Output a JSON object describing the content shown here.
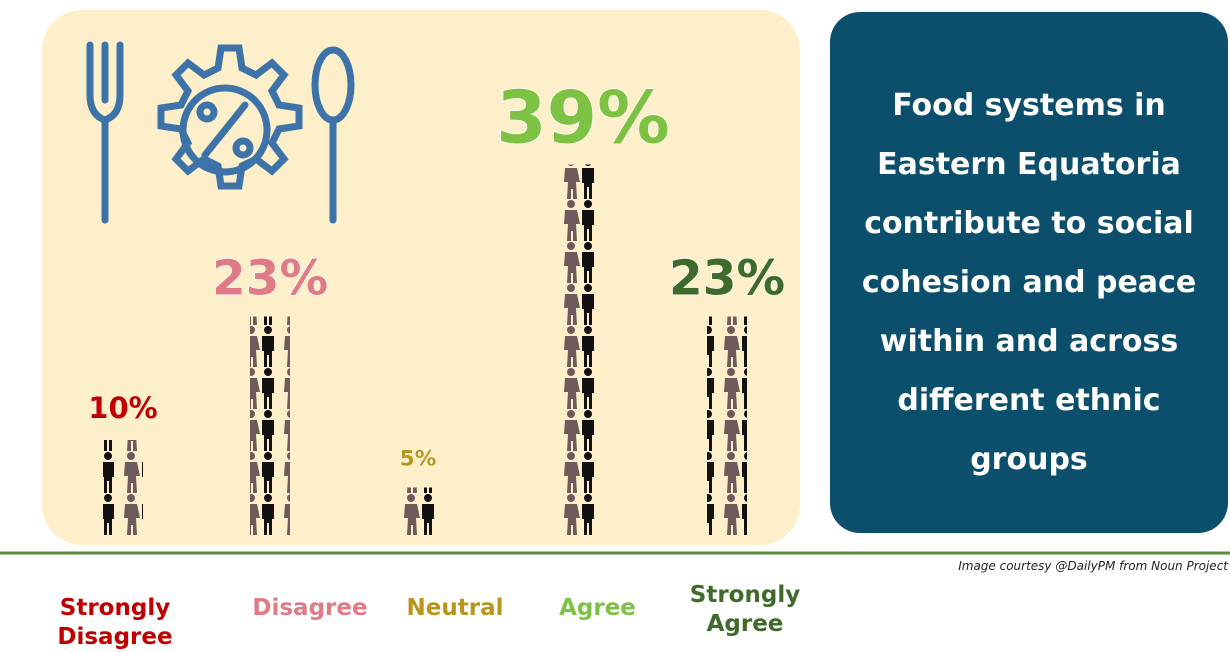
{
  "chart_data": {
    "type": "pictogram",
    "title": "Food systems in Eastern Equatoria contribute to social cohesion and peace within and across different ethnic groups",
    "categories": [
      "Strongly Disagree",
      "Disagree",
      "Neutral",
      "Agree",
      "Strongly Agree"
    ],
    "values": [
      10,
      23,
      5,
      39,
      23
    ],
    "value_labels": [
      "10%",
      "23%",
      "5%",
      "39%",
      "23%"
    ],
    "colors": [
      "#c00000",
      "#e07b86",
      "#b8961e",
      "#7dc242",
      "#3f6b2a"
    ],
    "annotation": "Image courtesy @DailyPM from Noun Project"
  }
}
